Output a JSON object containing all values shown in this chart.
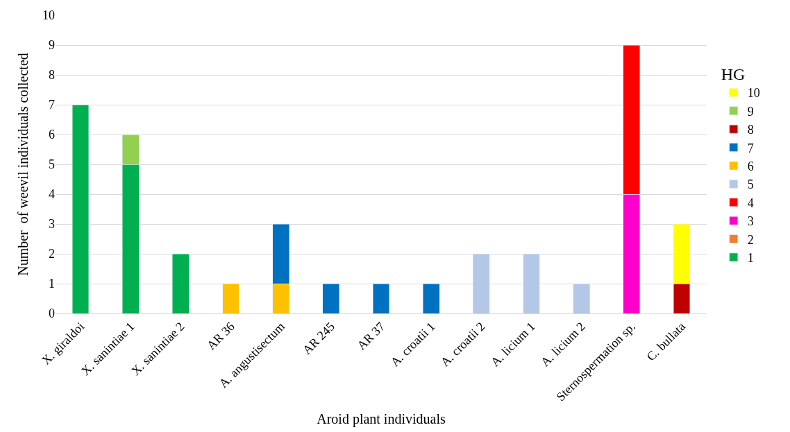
{
  "chart_data": {
    "type": "bar",
    "stacked": true,
    "xlabel": "Aroid plant individuals",
    "ylabel": "Number  of weevil individuals collected",
    "legend_title": "HG",
    "legend": "right",
    "grid": "y",
    "ylim": [
      0,
      10
    ],
    "yticks": [
      0,
      1,
      2,
      3,
      4,
      5,
      6,
      7,
      8,
      9,
      10
    ],
    "categories": [
      "X. giraldoi",
      "X. sanintiae 1",
      "X. sanintiae 2",
      "AR 36",
      "A. angustisectum",
      "AR 245",
      "AR 37",
      "A. croatii 1",
      "A. croatii 2",
      "A. licium 1",
      "A. licium 2",
      "Sternospermation sp.",
      "C. bullata"
    ],
    "series": [
      {
        "name": "1",
        "color": "#00b050",
        "values": [
          7,
          5,
          2,
          null,
          null,
          null,
          null,
          null,
          null,
          null,
          null,
          null,
          null
        ]
      },
      {
        "name": "2",
        "color": "#ed7d31",
        "values": [
          null,
          null,
          null,
          null,
          null,
          null,
          null,
          null,
          null,
          null,
          null,
          null,
          null
        ]
      },
      {
        "name": "3",
        "color": "#ff00cc",
        "values": [
          null,
          null,
          null,
          null,
          null,
          null,
          null,
          null,
          null,
          null,
          null,
          4,
          null
        ]
      },
      {
        "name": "4",
        "color": "#ff0000",
        "values": [
          null,
          null,
          null,
          null,
          null,
          null,
          null,
          null,
          null,
          null,
          null,
          5,
          null
        ]
      },
      {
        "name": "5",
        "color": "#b4c7e7",
        "values": [
          null,
          null,
          null,
          null,
          null,
          null,
          null,
          null,
          2,
          2,
          1,
          null,
          null
        ]
      },
      {
        "name": "6",
        "color": "#ffc000",
        "values": [
          null,
          null,
          null,
          1,
          1,
          null,
          null,
          null,
          null,
          null,
          null,
          null,
          null
        ]
      },
      {
        "name": "7",
        "color": "#0070c0",
        "values": [
          null,
          null,
          null,
          null,
          2,
          1,
          1,
          1,
          null,
          null,
          null,
          null,
          null
        ]
      },
      {
        "name": "8",
        "color": "#c00000",
        "values": [
          null,
          null,
          null,
          null,
          null,
          null,
          null,
          null,
          null,
          null,
          null,
          null,
          1
        ]
      },
      {
        "name": "9",
        "color": "#92d050",
        "values": [
          null,
          1,
          null,
          null,
          null,
          null,
          null,
          null,
          null,
          null,
          null,
          null,
          null
        ]
      },
      {
        "name": "10",
        "color": "#ffff00",
        "values": [
          null,
          null,
          null,
          null,
          null,
          null,
          null,
          null,
          null,
          null,
          null,
          null,
          2
        ]
      }
    ]
  }
}
